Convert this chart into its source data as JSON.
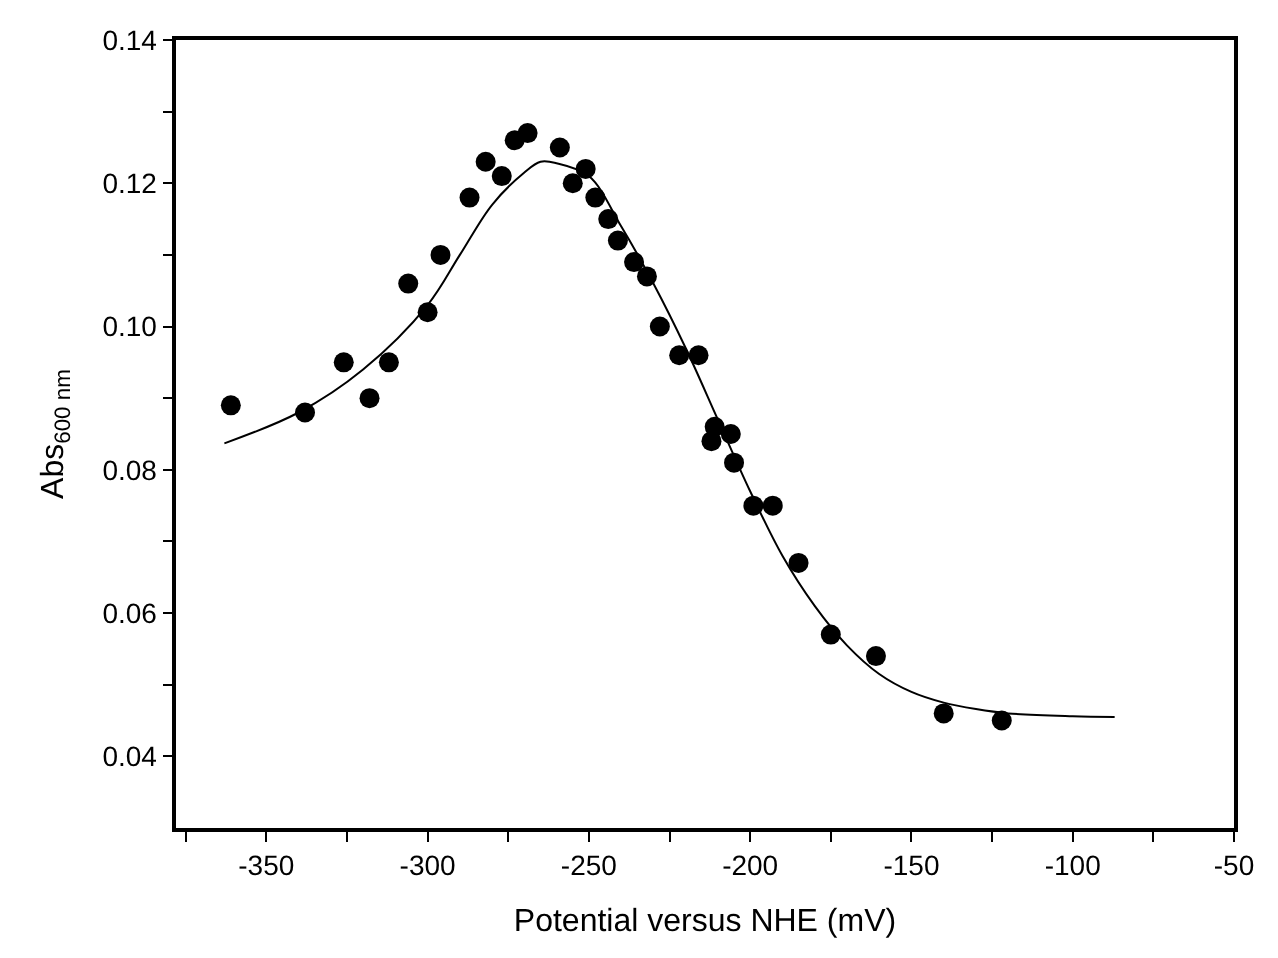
{
  "chart_data": {
    "type": "scatter",
    "xlabel": "Potential versus NHE (mV)",
    "ylabel": "Abs$_{600 nm}$",
    "xlim": [
      -378,
      -50
    ],
    "ylim": [
      0.03,
      0.14
    ],
    "xticks": [
      {
        "value": -375,
        "label": null
      },
      -350,
      {
        "value": -325,
        "label": null
      },
      -300,
      {
        "value": -275,
        "label": null
      },
      -250,
      {
        "value": -225,
        "label": null
      },
      -200,
      {
        "value": -175,
        "label": null
      },
      -150,
      {
        "value": -125,
        "label": null
      },
      -100,
      {
        "value": -75,
        "label": null
      },
      -50
    ],
    "yticks": [
      0.04,
      {
        "value": 0.05,
        "label": null
      },
      "0.06",
      {
        "value": 0.07,
        "label": null
      },
      0.08,
      {
        "value": 0.09,
        "label": null
      },
      "0.10",
      {
        "value": 0.11,
        "label": null
      },
      0.12,
      {
        "value": 0.13,
        "label": null
      },
      0.14
    ],
    "marker": "circle",
    "series": [
      {
        "color": "#000000",
        "x": [
          -361,
          -338,
          -326,
          -318,
          -312,
          -306,
          -300,
          -296,
          -287,
          -282,
          -277,
          -273,
          -269,
          -259,
          -255,
          -251,
          -248,
          -244,
          -241,
          -236,
          -232,
          -228,
          -222,
          -216,
          -211,
          -212,
          -206,
          -205,
          -199,
          -193,
          -185,
          -175,
          -161,
          -140,
          -122
        ],
        "values": [
          0.089,
          0.088,
          0.095,
          0.09,
          0.095,
          0.106,
          0.102,
          0.11,
          0.118,
          0.123,
          0.121,
          0.126,
          0.127,
          0.125,
          0.12,
          0.122,
          0.118,
          0.115,
          0.112,
          0.109,
          0.107,
          0.1,
          0.096,
          0.096,
          0.086,
          0.084,
          0.085,
          0.081,
          0.075,
          0.075,
          0.067,
          0.057,
          0.054,
          0.046,
          0.045
        ]
      },
      {
        "type": "line",
        "color": "#000000",
        "marker": "none",
        "x": [
          -363,
          -340,
          -320,
          -300,
          -290,
          -280,
          -270,
          -265,
          -260,
          -250,
          -240,
          -230,
          -220,
          -210,
          -200,
          -190,
          -180,
          -170,
          -160,
          -150,
          -140,
          -130,
          -120,
          -100,
          -87
        ],
        "values": [
          0.0837,
          0.088,
          0.094,
          0.103,
          0.11,
          0.117,
          0.1215,
          0.123,
          0.1228,
          0.121,
          0.114,
          0.106,
          0.097,
          0.087,
          0.077,
          0.068,
          0.061,
          0.0555,
          0.0515,
          0.049,
          0.0475,
          0.0466,
          0.046,
          0.0456,
          0.0455
        ]
      }
    ]
  }
}
